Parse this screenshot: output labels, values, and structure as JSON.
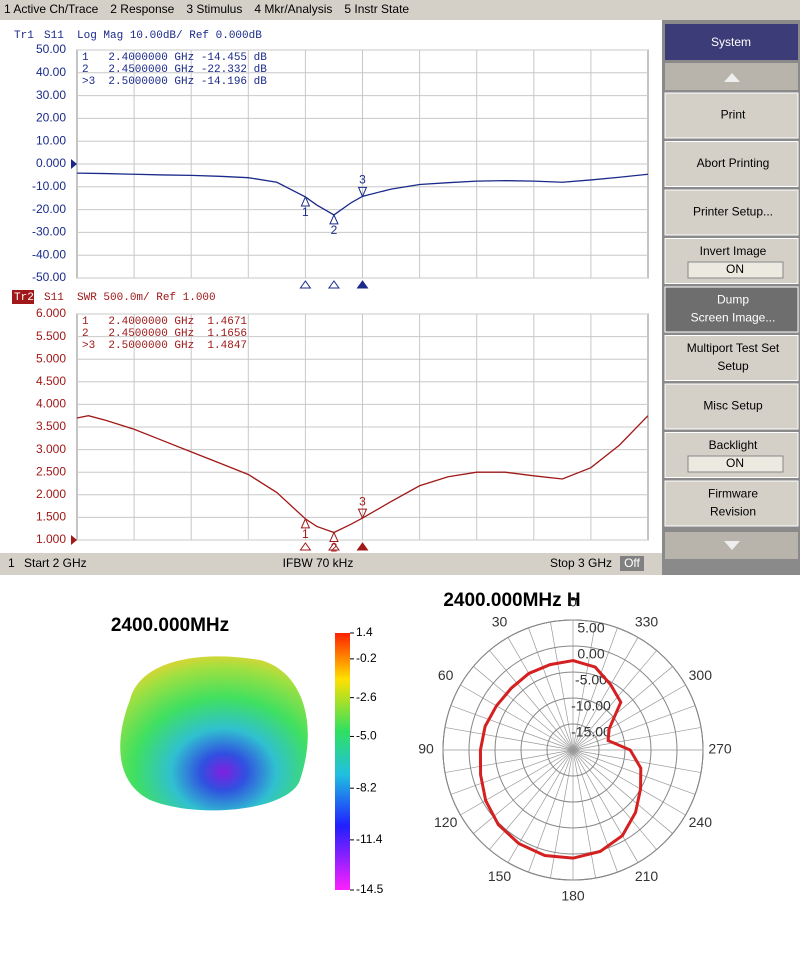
{
  "menu": [
    "1 Active Ch/Trace",
    "2 Response",
    "3 Stimulus",
    "4 Mkr/Analysis",
    "5 Instr State"
  ],
  "softkeys": {
    "title": "System",
    "buttons": [
      {
        "lines": [
          "Print"
        ]
      },
      {
        "lines": [
          "Abort Printing"
        ]
      },
      {
        "lines": [
          "Printer Setup..."
        ]
      },
      {
        "lines": [
          "Invert Image"
        ],
        "state": "ON"
      },
      {
        "lines": [
          "Dump",
          "Screen Image..."
        ]
      },
      {
        "lines": [
          "Multiport Test Set",
          "Setup"
        ]
      },
      {
        "lines": [
          "Misc Setup"
        ]
      },
      {
        "lines": [
          "Backlight"
        ],
        "state": "ON"
      },
      {
        "lines": [
          "Firmware",
          "Revision"
        ]
      }
    ]
  },
  "status": {
    "channel": "1",
    "start": "Start 2 GHz",
    "ifbw": "IFBW 70 kHz",
    "stop": "Stop 3 GHz",
    "state": "Off"
  },
  "chart_data": [
    {
      "type": "line",
      "trace": "Tr1",
      "title": "S11  Log Mag 10.00dB/ Ref 0.000dB",
      "x": [
        2.0,
        2.05,
        2.1,
        2.15,
        2.2,
        2.25,
        2.3,
        2.35,
        2.4,
        2.42,
        2.45,
        2.48,
        2.5,
        2.55,
        2.6,
        2.65,
        2.7,
        2.75,
        2.8,
        2.85,
        2.9,
        2.95,
        3.0
      ],
      "series": [
        {
          "color": "#1a2a8a",
          "values": [
            -4,
            -4.2,
            -4.5,
            -4.8,
            -5,
            -5.4,
            -6,
            -8,
            -14.455,
            -18,
            -22.332,
            -17,
            -14.196,
            -11,
            -9,
            -8.2,
            -7.5,
            -7.3,
            -7.5,
            -8,
            -7,
            -5.8,
            -4.5
          ]
        }
      ],
      "xlim": [
        2,
        3
      ],
      "ylim": [
        -50,
        50
      ],
      "yticks": [
        {
          "value": -50,
          "label": "-50.00"
        },
        {
          "value": -40,
          "label": "-40.00"
        },
        {
          "value": -30,
          "label": "-30.00"
        },
        {
          "value": -20,
          "label": "-20.00"
        },
        {
          "value": -10,
          "label": "-10.00"
        },
        {
          "value": 0,
          "label": "0.000"
        },
        {
          "value": 10,
          "label": "10.00"
        },
        {
          "value": 20,
          "label": "20.00"
        },
        {
          "value": 30,
          "label": "30.00"
        },
        {
          "value": 40,
          "label": "40.00"
        },
        {
          "value": 50,
          "label": "50.00"
        }
      ],
      "grid": true,
      "markers": [
        {
          "label": "1",
          "x": 2.4,
          "y": -14.455
        },
        {
          "label": "2",
          "x": 2.45,
          "y": -22.332
        },
        {
          "label": "3",
          "x": 2.5,
          "y": -14.196
        }
      ],
      "readouts": [
        "1   2.4000000 GHz -14.455 dB",
        "2   2.4500000 GHz -22.332 dB",
        ">3  2.5000000 GHz -14.196 dB"
      ]
    },
    {
      "type": "line",
      "trace": "Tr2",
      "title": "S11  SWR 500.0m/ Ref 1.000",
      "x": [
        2.0,
        2.02,
        2.05,
        2.1,
        2.15,
        2.2,
        2.25,
        2.3,
        2.35,
        2.4,
        2.42,
        2.45,
        2.48,
        2.5,
        2.55,
        2.6,
        2.65,
        2.7,
        2.75,
        2.8,
        2.85,
        2.9,
        2.95,
        3.0
      ],
      "series": [
        {
          "color": "#a01818",
          "values": [
            3.7,
            3.75,
            3.65,
            3.45,
            3.2,
            2.95,
            2.7,
            2.45,
            2.05,
            1.4671,
            1.3,
            1.1656,
            1.35,
            1.4847,
            1.85,
            2.2,
            2.4,
            2.5,
            2.5,
            2.42,
            2.35,
            2.6,
            3.1,
            3.75
          ]
        }
      ],
      "xlim": [
        2,
        3
      ],
      "ylim": [
        1,
        6
      ],
      "yticks": [
        {
          "value": 1,
          "label": "1.000"
        },
        {
          "value": 1.5,
          "label": "1.500"
        },
        {
          "value": 2,
          "label": "2.000"
        },
        {
          "value": 2.5,
          "label": "2.500"
        },
        {
          "value": 3,
          "label": "3.000"
        },
        {
          "value": 3.5,
          "label": "3.500"
        },
        {
          "value": 4,
          "label": "4.000"
        },
        {
          "value": 4.5,
          "label": "4.500"
        },
        {
          "value": 5,
          "label": "5.000"
        },
        {
          "value": 5.5,
          "label": "5.500"
        },
        {
          "value": 6,
          "label": "6.000"
        }
      ],
      "grid": true,
      "markers": [
        {
          "label": "1",
          "x": 2.4,
          "y": 1.4671
        },
        {
          "label": "2",
          "x": 2.45,
          "y": 1.1656
        },
        {
          "label": "3",
          "x": 2.5,
          "y": 1.4847
        }
      ],
      "readouts": [
        "1   2.4000000 GHz  1.4671",
        "2   2.4500000 GHz  1.1656",
        ">3  2.5000000 GHz  1.4847"
      ]
    },
    {
      "type": "colorbar",
      "title": "2400.000MHz",
      "clim": [
        -14.5,
        1.4
      ],
      "cticks": [
        1.4,
        -0.2,
        -2.6,
        {
          "value": -5,
          "label": "-5.0"
        },
        -8.2,
        -11.4,
        -14.5
      ]
    },
    {
      "type": "polar",
      "title": "2400.000MHz  H",
      "theta": [
        0,
        15,
        30,
        45,
        60,
        75,
        90,
        105,
        120,
        135,
        150,
        165,
        180,
        195,
        210,
        225,
        240,
        255,
        270,
        285,
        300,
        315,
        330,
        345
      ],
      "series": [
        {
          "color": "#d42020",
          "values": [
            -2.8,
            -3,
            -3,
            -3.2,
            -3,
            -2.5,
            -2.2,
            -1.6,
            -0.6,
            0.3,
            0.8,
            1,
            0.8,
            0.2,
            -1,
            -3,
            -5,
            -6.5,
            -9,
            -13,
            -12,
            -7,
            -5.5,
            -3.5
          ]
        }
      ],
      "rlim": [
        -20,
        5
      ],
      "rticks": [
        {
          "value": 5,
          "label": "5.00"
        },
        {
          "value": 0,
          "label": "0.00"
        },
        {
          "value": -5,
          "label": "-5.00"
        },
        {
          "value": -10,
          "label": "-10.00"
        },
        {
          "value": -15,
          "label": "-15.00"
        }
      ],
      "thetaticks": [
        0,
        30,
        60,
        90,
        120,
        150,
        180,
        210,
        240,
        270,
        300,
        330
      ]
    }
  ]
}
